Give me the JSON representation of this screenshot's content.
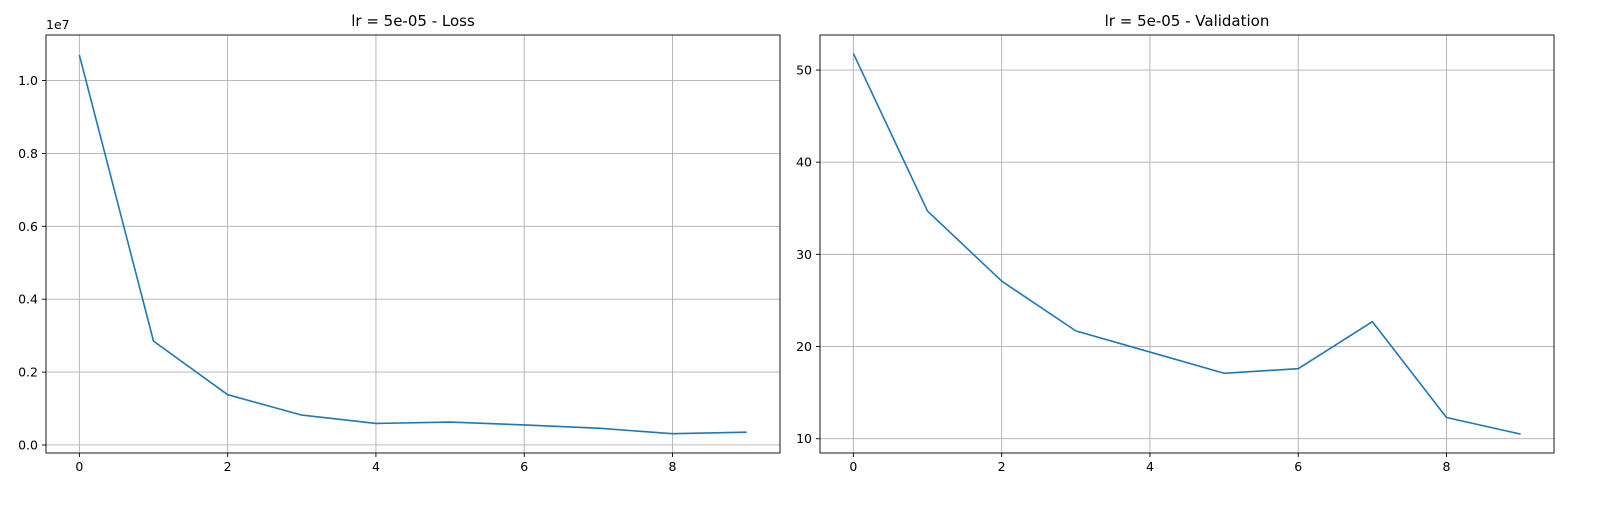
{
  "chart_data": [
    {
      "type": "line",
      "title": "lr = 5e-05 - Loss",
      "xlabel": "",
      "ylabel": "",
      "y_offset_label": "1e7",
      "x": [
        0,
        1,
        2,
        3,
        4,
        5,
        6,
        7,
        8,
        9
      ],
      "series": [
        {
          "values": [
            10700000,
            2850000,
            1380000,
            820000,
            590000,
            630000,
            550000,
            460000,
            310000,
            350000
          ]
        }
      ],
      "xlim": [
        -0.45,
        9.45
      ],
      "ylim": [
        -220000,
        11250000
      ],
      "xticks": [
        0,
        2,
        4,
        6,
        8
      ],
      "xtick_labels": [
        "0",
        "2",
        "4",
        "6",
        "8"
      ],
      "yticks": [
        0,
        2000000,
        4000000,
        6000000,
        8000000,
        10000000
      ],
      "ytick_labels": [
        "0.0",
        "0.2",
        "0.4",
        "0.6",
        "0.8",
        "1.0"
      ],
      "grid": true,
      "line_color": "#1f77b4"
    },
    {
      "type": "line",
      "title": "lr = 5e-05 - Validation",
      "xlabel": "",
      "ylabel": "",
      "x": [
        0,
        1,
        2,
        3,
        4,
        5,
        6,
        7,
        8,
        9
      ],
      "series": [
        {
          "values": [
            51.8,
            34.7,
            27.1,
            21.7,
            19.4,
            17.1,
            17.6,
            22.7,
            12.3,
            10.5
          ]
        }
      ],
      "xlim": [
        -0.45,
        9.45
      ],
      "ylim": [
        8.45,
        53.8
      ],
      "xticks": [
        0,
        2,
        4,
        6,
        8
      ],
      "xtick_labels": [
        "0",
        "2",
        "4",
        "6",
        "8"
      ],
      "yticks": [
        10,
        20,
        30,
        40,
        50
      ],
      "ytick_labels": [
        "10",
        "20",
        "30",
        "40",
        "50"
      ],
      "grid": true,
      "line_color": "#1f77b4"
    }
  ]
}
